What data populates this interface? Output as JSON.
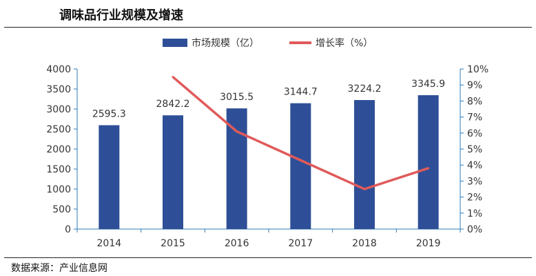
{
  "header": {
    "title": "调味品行业规模及增速"
  },
  "footer": {
    "source": "数据来源：产业信息网"
  },
  "chart_data": {
    "type": "bar",
    "categories": [
      "2014",
      "2015",
      "2016",
      "2017",
      "2018",
      "2019"
    ],
    "series": [
      {
        "name": "市场规模（亿）",
        "type": "bar",
        "axis": "left",
        "values": [
          2595.3,
          2842.2,
          3015.5,
          3144.7,
          3224.2,
          3345.9
        ],
        "color": "#2e4f97"
      },
      {
        "name": "增长率（%）",
        "type": "line",
        "axis": "right",
        "values": [
          null,
          9.5,
          6.1,
          4.3,
          2.5,
          3.8
        ],
        "color": "#e05a5a"
      }
    ],
    "data_labels": [
      "2595.3",
      "2842.2",
      "3015.5",
      "3144.7",
      "3224.2",
      "3345.9"
    ],
    "y_left": {
      "ylim": [
        0,
        4000
      ],
      "ticks": [
        "0",
        "500",
        "1000",
        "1500",
        "2000",
        "2500",
        "3000",
        "3500",
        "4000"
      ]
    },
    "y_right": {
      "ylim": [
        0,
        10
      ],
      "ticks": [
        "0%",
        "1%",
        "2%",
        "3%",
        "4%",
        "5%",
        "6%",
        "7%",
        "8%",
        "9%",
        "10%"
      ]
    },
    "legend_position": "top-center",
    "grid": false
  }
}
